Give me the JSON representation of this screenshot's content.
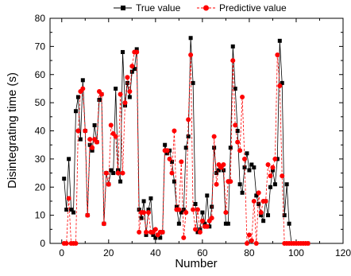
{
  "chart_data": {
    "type": "line",
    "xlabel": "Number",
    "ylabel": "Disintegrating time (s)",
    "xlim": [
      -5,
      120
    ],
    "ylim": [
      0,
      80
    ],
    "x_ticks": [
      0,
      20,
      40,
      60,
      80,
      100,
      120
    ],
    "y_ticks": [
      0,
      10,
      20,
      30,
      40,
      50,
      60,
      70,
      80
    ],
    "legend_position": "top",
    "grid": false,
    "series": [
      {
        "name": "True value",
        "color": "#000000",
        "marker": "square",
        "x": [
          1,
          2,
          3,
          4,
          5,
          6,
          7,
          8,
          9,
          10,
          11,
          12,
          13,
          14,
          15,
          16,
          17,
          18,
          19,
          20,
          21,
          22,
          23,
          24,
          25,
          26,
          27,
          28,
          29,
          30,
          31,
          32,
          33,
          34,
          35,
          36,
          37,
          38,
          39,
          40,
          41,
          42,
          43,
          44,
          45,
          46,
          47,
          48,
          49,
          50,
          51,
          52,
          53,
          54,
          55,
          56,
          57,
          58,
          59,
          60,
          61,
          62,
          63,
          64,
          65,
          66,
          67,
          68,
          69,
          70,
          71,
          72,
          73,
          74,
          75,
          76,
          77,
          78,
          79,
          80,
          81,
          82,
          83,
          84,
          85,
          86,
          87,
          88,
          89,
          90,
          91,
          92,
          93,
          94,
          95,
          96,
          97,
          98,
          99,
          100,
          101,
          102,
          103,
          104,
          105
        ],
        "y": [
          23,
          12,
          30,
          12,
          11,
          47,
          52,
          37,
          58,
          40,
          10,
          35,
          33,
          42,
          36,
          51,
          53,
          7,
          25,
          21,
          26,
          25,
          55,
          26,
          22,
          68,
          49,
          57,
          52,
          61,
          62,
          69,
          12,
          9,
          15,
          3,
          12,
          16,
          3,
          2,
          3,
          2,
          4,
          35,
          32,
          33,
          29,
          22,
          13,
          7,
          11,
          12,
          34,
          38,
          73,
          57,
          14,
          4,
          5,
          11,
          7,
          17,
          6,
          13,
          34,
          25,
          26,
          27,
          26,
          7,
          7,
          34,
          70,
          55,
          40,
          21,
          18,
          27,
          32,
          26,
          28,
          27,
          17,
          14,
          10,
          8,
          15,
          10,
          20,
          26,
          21,
          30,
          72,
          57,
          10,
          21,
          7,
          0,
          0,
          0,
          0,
          0,
          0,
          0,
          0
        ]
      },
      {
        "name": "Predictive value",
        "color": "#ff0000",
        "marker": "circle",
        "x": [
          1,
          2,
          3,
          4,
          5,
          6,
          7,
          8,
          9,
          10,
          11,
          12,
          13,
          14,
          15,
          16,
          17,
          18,
          19,
          20,
          21,
          22,
          23,
          24,
          25,
          26,
          27,
          28,
          29,
          30,
          31,
          32,
          33,
          34,
          35,
          36,
          37,
          38,
          39,
          40,
          41,
          42,
          43,
          44,
          45,
          46,
          47,
          48,
          49,
          50,
          51,
          52,
          53,
          54,
          55,
          56,
          57,
          58,
          59,
          60,
          61,
          62,
          63,
          64,
          65,
          66,
          67,
          68,
          69,
          70,
          71,
          72,
          73,
          74,
          75,
          76,
          77,
          78,
          79,
          80,
          81,
          82,
          83,
          84,
          85,
          86,
          87,
          88,
          89,
          90,
          91,
          92,
          93,
          94,
          95,
          96,
          97,
          98,
          99,
          100,
          101,
          102,
          103,
          104,
          105
        ],
        "y": [
          0,
          0,
          16,
          0,
          0,
          0,
          40,
          54,
          55,
          40,
          10,
          37,
          34,
          37,
          36,
          54,
          53,
          7,
          25,
          21,
          42,
          39,
          38,
          25,
          53,
          25,
          50,
          59,
          54,
          63,
          68,
          68,
          4,
          11,
          11,
          4,
          11,
          4,
          4,
          5,
          3,
          4,
          4,
          33,
          33,
          30,
          25,
          40,
          12,
          12,
          29,
          2,
          11,
          44,
          67,
          12,
          5,
          12,
          4,
          8,
          6,
          6,
          8,
          9,
          38,
          21,
          28,
          27,
          28,
          11,
          22,
          22,
          65,
          42,
          36,
          33,
          52,
          30,
          0,
          3,
          1,
          15,
          0,
          18,
          11,
          15,
          15,
          28,
          24,
          27,
          30,
          67,
          56,
          24,
          0,
          0,
          0,
          0,
          0,
          0,
          0,
          0,
          0,
          0,
          0
        ]
      }
    ]
  }
}
